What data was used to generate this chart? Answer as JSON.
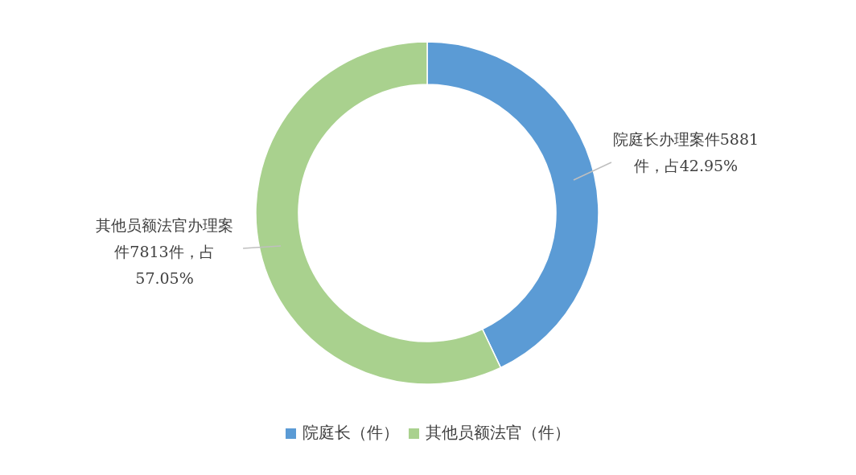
{
  "chart_data": {
    "type": "donut",
    "categories": [
      "院庭长（件）",
      "其他员额法官（件）"
    ],
    "values": [
      5881,
      7813
    ],
    "colors": [
      "#5b9bd5",
      "#a9d18e"
    ],
    "value_labels": [
      "院庭长办理案件5881件，占42.95%",
      "其他员额法官办理案件7813件，占57.05%"
    ],
    "legend": "bottom"
  }
}
